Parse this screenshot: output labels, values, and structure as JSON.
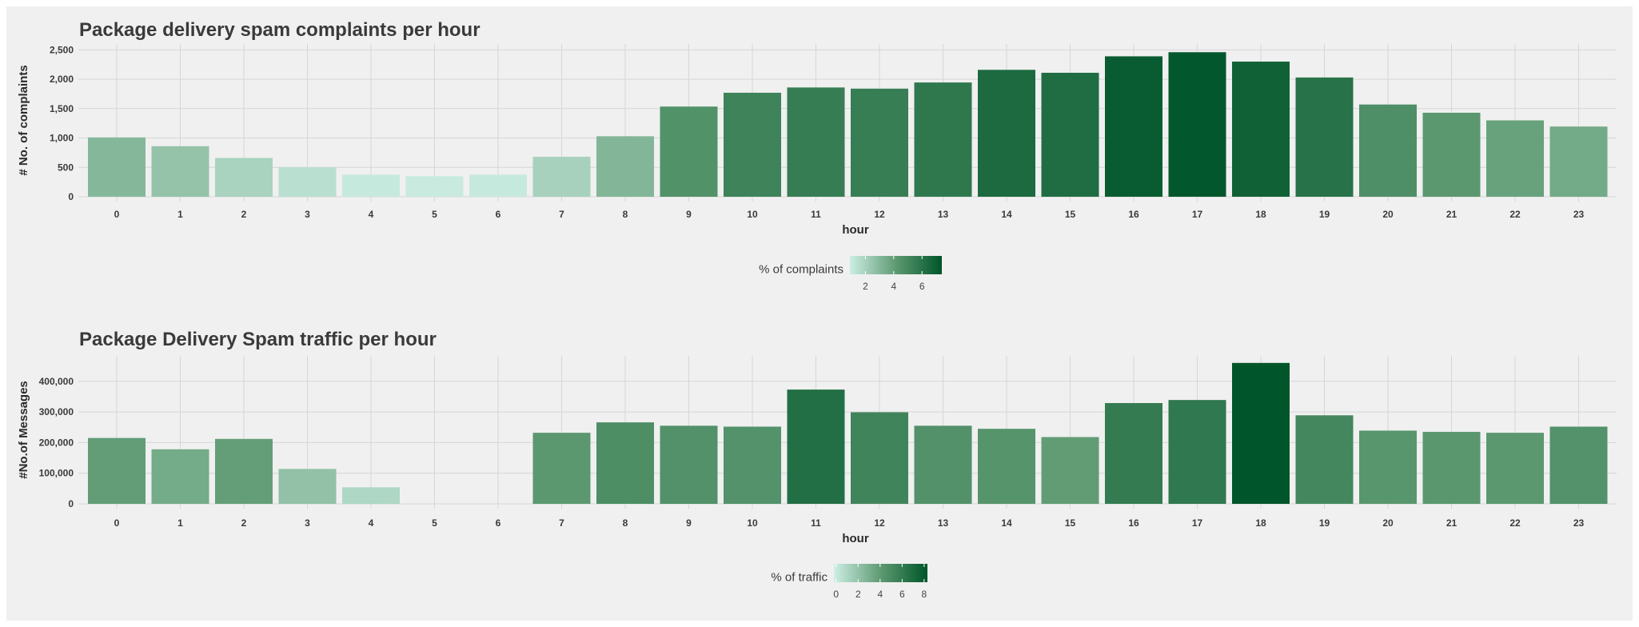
{
  "chart_data": [
    {
      "type": "bar",
      "title": "Package delivery spam complaints per hour",
      "xlabel": "hour",
      "ylabel": "# No. of complaints",
      "categories": [
        "0",
        "1",
        "2",
        "3",
        "4",
        "5",
        "6",
        "7",
        "8",
        "9",
        "10",
        "11",
        "12",
        "13",
        "14",
        "15",
        "16",
        "17",
        "18",
        "19",
        "20",
        "21",
        "22",
        "23"
      ],
      "values": [
        1010,
        860,
        660,
        500,
        375,
        350,
        375,
        680,
        1030,
        1535,
        1770,
        1860,
        1840,
        1945,
        2160,
        2110,
        2390,
        2460,
        2300,
        2030,
        1570,
        1430,
        1300,
        1195
      ],
      "ylim": [
        0,
        2600
      ],
      "yticks": [
        0,
        500,
        1000,
        1500,
        2000,
        2500
      ],
      "ytick_labels": [
        "0",
        "500",
        "1,000",
        "1,500",
        "2,000",
        "2,500"
      ],
      "grid": true,
      "fill_encodes": "% of complaints",
      "legend": {
        "title": "% of complaints",
        "placement": "bottom",
        "ticks": [
          2,
          4,
          6
        ],
        "tick_labels": [
          "2",
          "4",
          "6"
        ],
        "range": [
          0.9,
          7.4
        ]
      }
    },
    {
      "type": "bar",
      "title": "Package Delivery Spam traffic per hour",
      "xlabel": "hour",
      "ylabel": "#No.of Messages",
      "categories": [
        "0",
        "1",
        "2",
        "3",
        "4",
        "5",
        "6",
        "7",
        "8",
        "9",
        "10",
        "11",
        "12",
        "13",
        "14",
        "15",
        "16",
        "17",
        "18",
        "19",
        "20",
        "21",
        "22",
        "23"
      ],
      "values": [
        215000,
        178000,
        212000,
        114000,
        54000,
        0,
        0,
        232000,
        266000,
        255000,
        252000,
        373000,
        299000,
        255000,
        245000,
        218000,
        329000,
        339000,
        460000,
        289000,
        239000,
        235000,
        232000,
        252000
      ],
      "ylim": [
        0,
        483000
      ],
      "yticks": [
        0,
        100000,
        200000,
        300000,
        400000
      ],
      "ytick_labels": [
        "0",
        "100,000",
        "200,000",
        "300,000",
        "400,000"
      ],
      "grid": true,
      "fill_encodes": "% of traffic",
      "legend": {
        "title": "% of traffic",
        "placement": "bottom",
        "ticks": [
          0,
          2,
          4,
          6,
          8
        ],
        "tick_labels": [
          "0",
          "2",
          "4",
          "6",
          "8"
        ],
        "range": [
          -0.2,
          8.3
        ]
      }
    }
  ],
  "colors": {
    "low": "#cdeee4",
    "mid": "#5e9a72",
    "high": "#00552a",
    "background": "#f0f0f0",
    "grid": "#d6d6d6"
  }
}
